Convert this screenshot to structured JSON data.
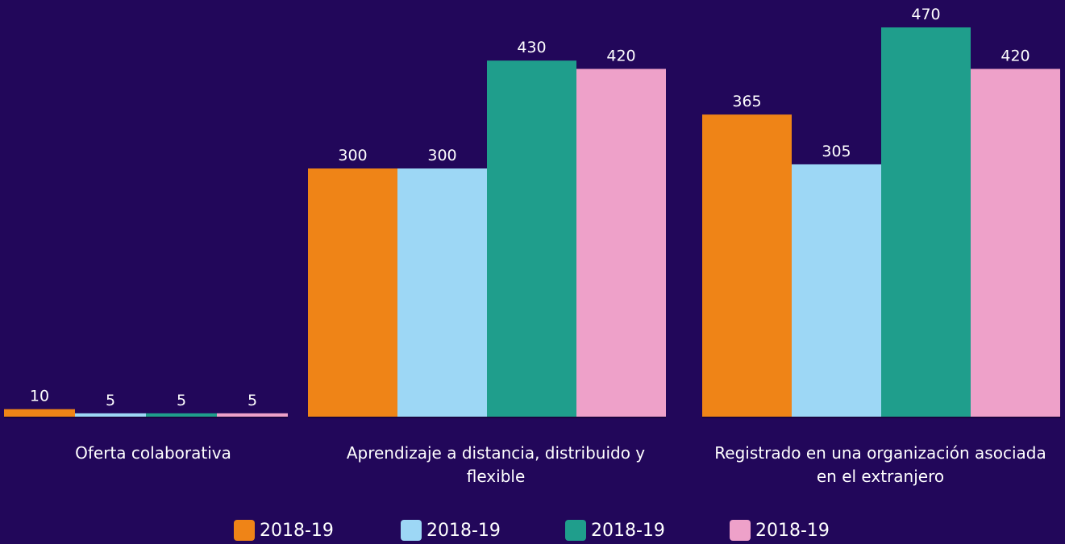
{
  "chart_data": {
    "type": "bar",
    "categories": [
      "Oferta colaborativa",
      "Aprendizaje a distancia, distribuido y flexible",
      "Registrado en una organización asociada en el extranjero"
    ],
    "series": [
      {
        "name": "2018-19",
        "color": "#ef8417",
        "values": [
          10,
          300,
          365
        ]
      },
      {
        "name": "2018-19",
        "color": "#9dd7f5",
        "values": [
          5,
          300,
          305
        ]
      },
      {
        "name": "2018-19",
        "color": "#1f9e8c",
        "values": [
          5,
          430,
          470
        ]
      },
      {
        "name": "2018-19",
        "color": "#eea1c9",
        "values": [
          5,
          420,
          420
        ]
      }
    ]
  }
}
